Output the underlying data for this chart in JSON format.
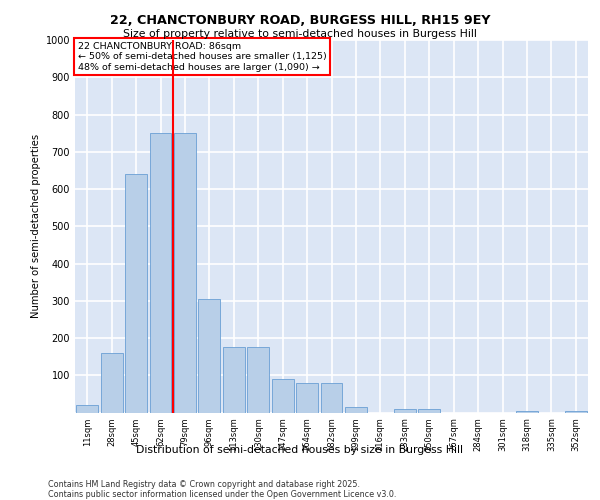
{
  "title1": "22, CHANCTONBURY ROAD, BURGESS HILL, RH15 9EY",
  "title2": "Size of property relative to semi-detached houses in Burgess Hill",
  "xlabel": "Distribution of semi-detached houses by size in Burgess Hill",
  "ylabel": "Number of semi-detached properties",
  "categories": [
    "11sqm",
    "28sqm",
    "45sqm",
    "62sqm",
    "79sqm",
    "96sqm",
    "113sqm",
    "130sqm",
    "147sqm",
    "164sqm",
    "182sqm",
    "199sqm",
    "216sqm",
    "233sqm",
    "250sqm",
    "267sqm",
    "284sqm",
    "301sqm",
    "318sqm",
    "335sqm",
    "352sqm"
  ],
  "values": [
    20,
    160,
    640,
    750,
    750,
    305,
    175,
    175,
    90,
    80,
    80,
    15,
    0,
    10,
    10,
    0,
    0,
    0,
    5,
    0,
    5
  ],
  "bar_color": "#b8cfe8",
  "bar_edge_color": "#6a9fd4",
  "vline_color": "red",
  "vline_pos": 3.5,
  "annotation_title": "22 CHANCTONBURY ROAD: 86sqm",
  "annotation_line1": "← 50% of semi-detached houses are smaller (1,125)",
  "annotation_line2": "48% of semi-detached houses are larger (1,090) →",
  "bg_color": "#dce6f5",
  "grid_color": "white",
  "ylim": [
    0,
    1000
  ],
  "yticks": [
    0,
    100,
    200,
    300,
    400,
    500,
    600,
    700,
    800,
    900,
    1000
  ],
  "footer_line1": "Contains HM Land Registry data © Crown copyright and database right 2025.",
  "footer_line2": "Contains public sector information licensed under the Open Government Licence v3.0."
}
